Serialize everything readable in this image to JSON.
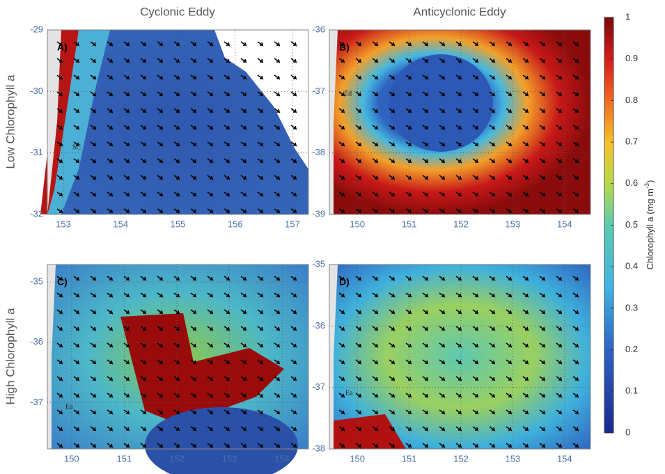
{
  "columns": [
    "Cyclonic Eddy",
    "Anticyclonic Eddy"
  ],
  "rows": [
    "Low Chlorophyll a",
    "High Chlorophyll a"
  ],
  "panels": [
    {
      "label": "A)",
      "xlim": [
        152.72,
        157.28
      ],
      "xticks": [
        153,
        154,
        155,
        156,
        157
      ],
      "ylim": [
        -32,
        -29
      ],
      "yticks": [
        -32,
        -31,
        -30,
        -29
      ],
      "places": [
        "SC"
      ]
    },
    {
      "label": "B)",
      "xlim": [
        149.46,
        154.5
      ],
      "xticks": [
        150,
        151,
        152,
        153,
        154
      ],
      "ylim": [
        -39,
        -36
      ],
      "yticks": [
        -39,
        -38,
        -37,
        -36
      ],
      "places": [
        "Ed"
      ]
    },
    {
      "label": "C)",
      "xlim": [
        149.54,
        154.5
      ],
      "xticks": [
        150,
        151,
        152,
        153,
        154
      ],
      "ylim": [
        -37.77,
        -34.71
      ],
      "yticks": [
        -37,
        -36,
        -35
      ],
      "places": [
        "Ea"
      ]
    },
    {
      "label": "D)",
      "xlim": [
        149.46,
        154.5
      ],
      "xticks": [
        150,
        151,
        152,
        153,
        154
      ],
      "ylim": [
        -38,
        -35
      ],
      "yticks": [
        -38,
        -37,
        -36,
        -35
      ],
      "places": [
        "Ea"
      ]
    }
  ],
  "colorbar": {
    "label": "Chlorophyll a (mg m",
    "label_sup": "-3",
    "label_end": ")",
    "lim": [
      0,
      1
    ],
    "ticks": [
      0,
      0.1,
      0.2,
      0.3,
      0.4,
      0.5,
      0.6,
      0.7,
      0.8,
      0.9,
      1
    ]
  }
}
